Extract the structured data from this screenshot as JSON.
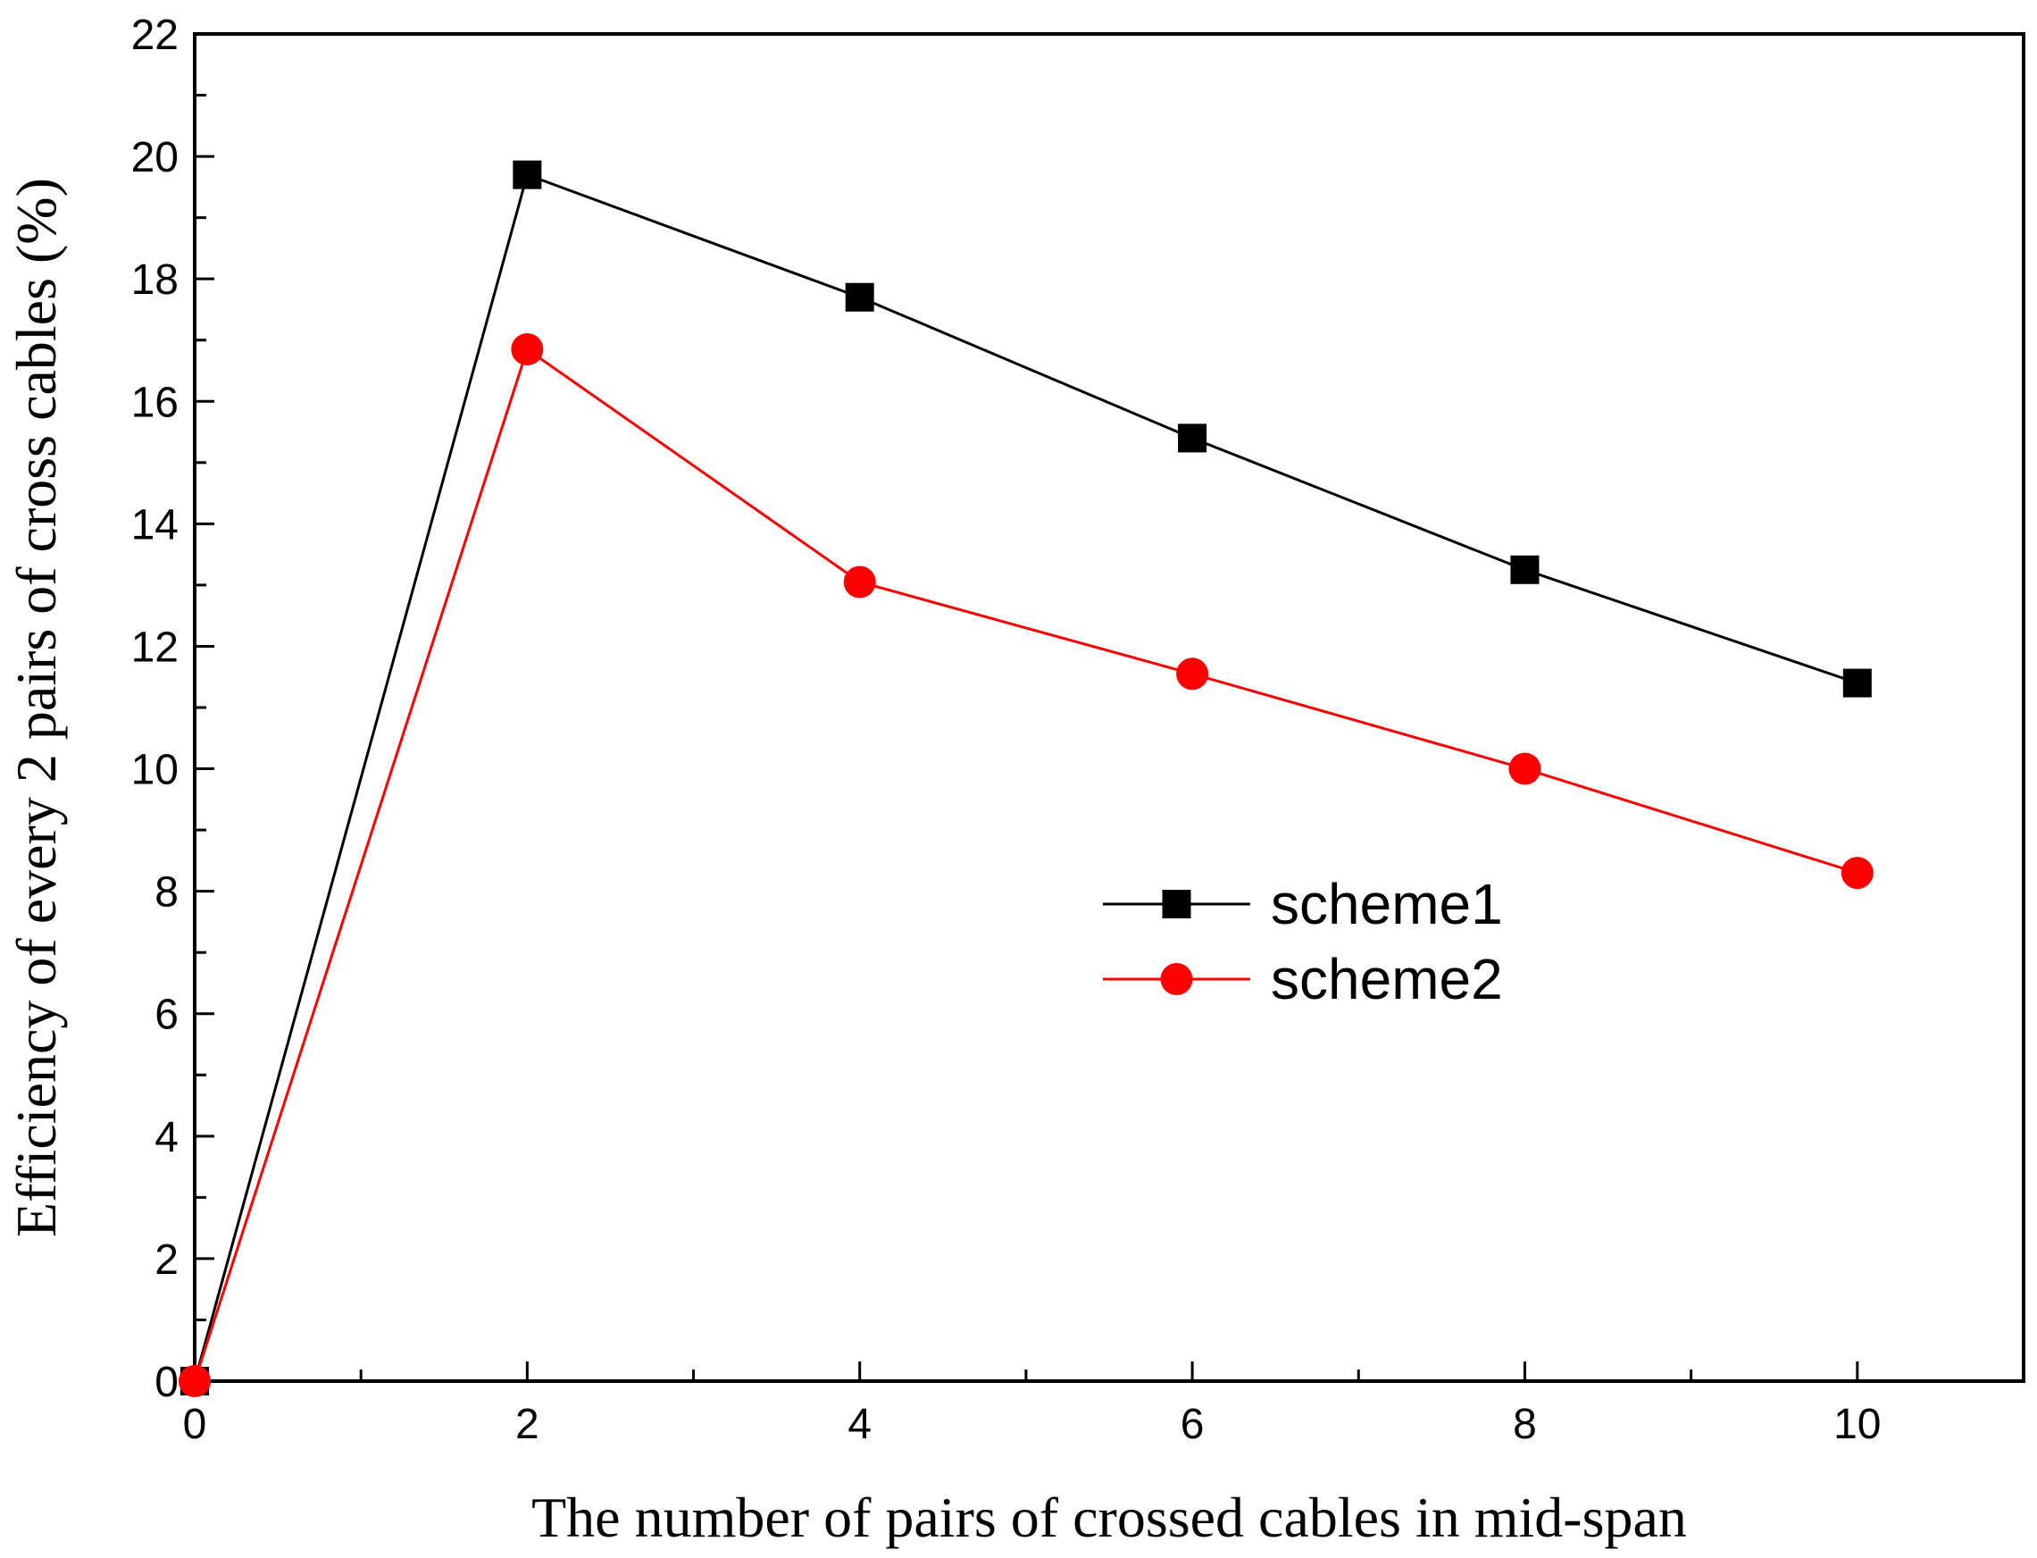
{
  "chart_data": {
    "type": "line",
    "title": "",
    "xlabel": "The number of pairs of crossed cables in mid-span",
    "ylabel": "Efficiency of every 2 pairs of cross cables (%)",
    "xlim": [
      0,
      11
    ],
    "ylim": [
      0,
      22
    ],
    "x_ticks": [
      0,
      2,
      4,
      6,
      8,
      10
    ],
    "y_ticks": [
      0,
      2,
      4,
      6,
      8,
      10,
      12,
      14,
      16,
      18,
      20,
      22
    ],
    "x_minor_step": 1,
    "y_minor_step": 1,
    "grid": false,
    "legend_position": "center-right",
    "series": [
      {
        "name": "scheme1",
        "color": "#000000",
        "marker": "square",
        "x": [
          0,
          2,
          4,
          6,
          8,
          10
        ],
        "values": [
          0,
          19.7,
          17.7,
          15.4,
          13.25,
          11.4
        ]
      },
      {
        "name": "scheme2",
        "color": "#ff0000",
        "marker": "circle",
        "x": [
          0,
          2,
          4,
          6,
          8,
          10
        ],
        "values": [
          0,
          16.85,
          13.05,
          11.55,
          10.0,
          8.3
        ]
      }
    ]
  }
}
